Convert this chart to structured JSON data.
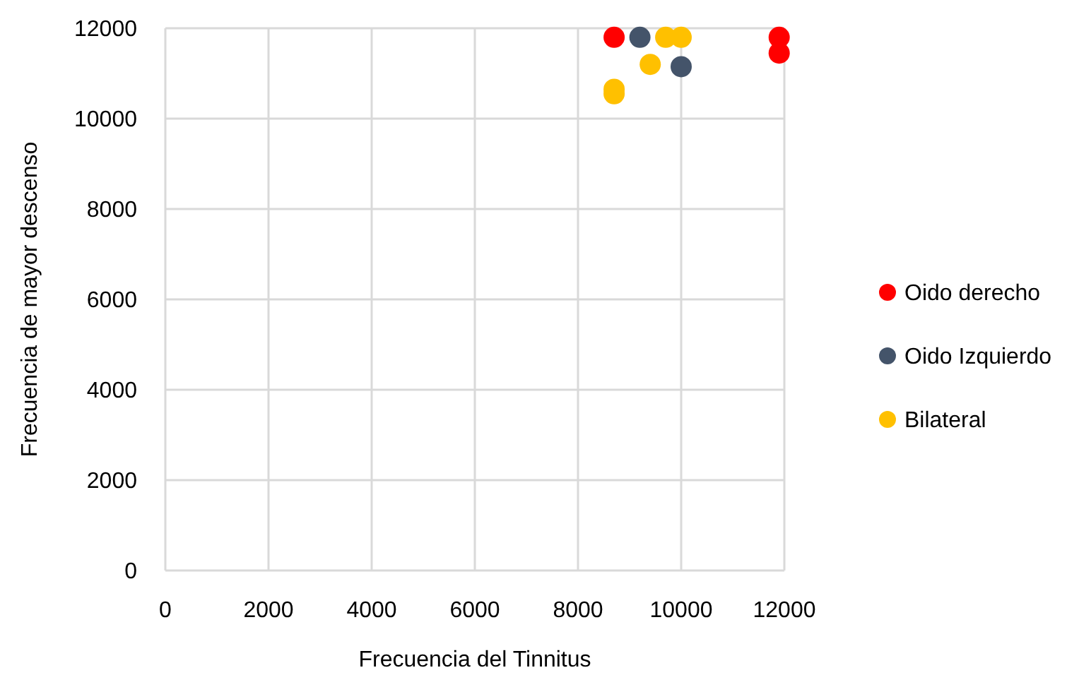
{
  "chart_data": {
    "type": "scatter",
    "xlabel": "Frecuencia del Tinnitus",
    "ylabel": "Frecuencia de mayor descenso",
    "xlim": [
      0,
      12000
    ],
    "ylim": [
      0,
      12000
    ],
    "xticks": [
      0,
      2000,
      4000,
      6000,
      8000,
      10000,
      12000
    ],
    "yticks": [
      0,
      2000,
      4000,
      6000,
      8000,
      10000,
      12000
    ],
    "grid": true,
    "legend": "right",
    "marker": "circle",
    "series": [
      {
        "name": "Oido derecho",
        "color": "#ff0000",
        "x": [
          8700,
          11900,
          11900
        ],
        "values": [
          11800,
          11800,
          11450
        ]
      },
      {
        "name": "Oido Izquierdo",
        "color": "#44546a",
        "x": [
          9200,
          10000
        ],
        "values": [
          11800,
          11150
        ]
      },
      {
        "name": "Bilateral",
        "color": "#ffc000",
        "x": [
          9700,
          10000,
          9400,
          8700,
          8700
        ],
        "values": [
          11800,
          11800,
          11200,
          10650,
          10550
        ]
      }
    ]
  }
}
